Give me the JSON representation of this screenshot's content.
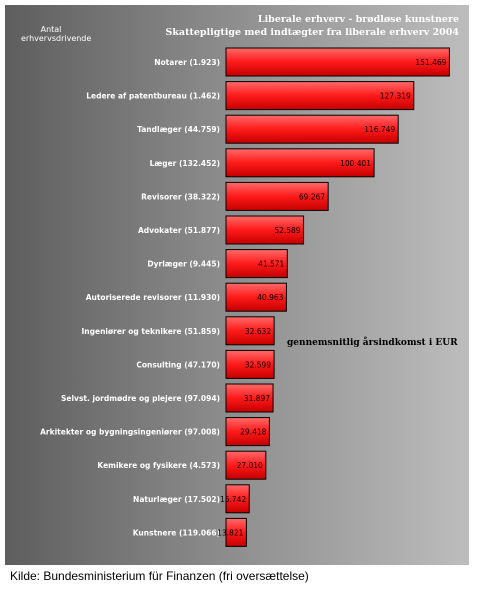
{
  "chart_data": {
    "type": "bar",
    "orientation": "horizontal",
    "title_lines": [
      "Liberale erhverv - brødløse kunstnere",
      "Skattepligtige med indtægter fra liberale erhverv 2004"
    ],
    "column_header_lines": [
      "Antal",
      "erhvervsdrivende"
    ],
    "categories": [
      "Notarer (1.923)",
      "Ledere af patentbureau (1.462)",
      "Tandlæger (44.759)",
      "Læger (132.452)",
      "Revisorer (38.322)",
      "Advokater (51.877)",
      "Dyrlæger (9.445)",
      "Autoriserede revisorer (11.930)",
      "Ingeniører og teknikere (51.859)",
      "Consulting (47.170)",
      "Selvst. jordmødre og plejere (97.094)",
      "Arkitekter og bygningsingeniører (97.008)",
      "Kemikere og fysikere (4.573)",
      "Naturlæger (17.502)",
      "Kunstnere (119.066)"
    ],
    "series": [
      {
        "name": "gennemsnitlig årsindkomst i EUR",
        "values": [
          151469,
          127319,
          116749,
          100401,
          69267,
          52589,
          41571,
          40963,
          32632,
          32599,
          31897,
          29418,
          27010,
          15742,
          13821
        ],
        "labels": [
          "151.469",
          "127.319",
          "116.749",
          "100.401",
          "69.267",
          "52.589",
          "41.571",
          "40.963",
          "32.632",
          "32.599",
          "31.897",
          "29.418",
          "27.010",
          "15.742",
          "13.821"
        ]
      }
    ],
    "xlim": [
      0,
      160000
    ],
    "bar_color": "#ff2020",
    "grid": false
  },
  "source_note": "Kilde: Bundesministerium für Finanzen (fri oversættelse)"
}
